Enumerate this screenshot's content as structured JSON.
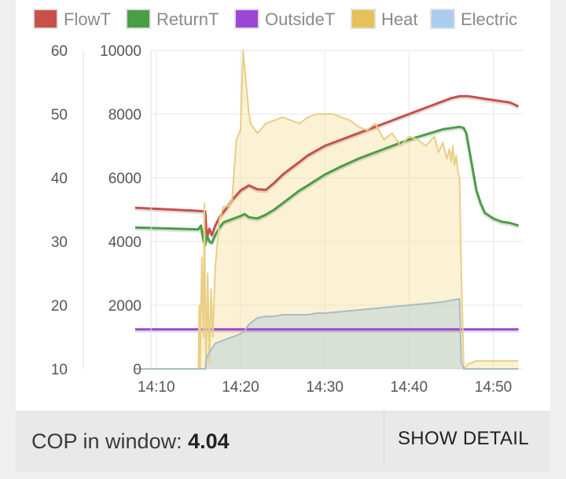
{
  "chart_data": {
    "type": "line",
    "legend_placement": "top",
    "grid": true,
    "x_ticks": [
      "14:10",
      "14:20",
      "14:30",
      "14:40",
      "14:50"
    ],
    "x_tick_minutes": [
      10,
      20,
      30,
      40,
      50
    ],
    "xlim": [
      7.5,
      53.5
    ],
    "y_left_ticks": [
      "60",
      "50",
      "40",
      "30",
      "20",
      "10"
    ],
    "y_left_lim": [
      10,
      60
    ],
    "y_right_ticks": [
      "10000",
      "8000",
      "6000",
      "4000",
      "2000",
      "0"
    ],
    "y_right_lim": [
      0,
      10000
    ],
    "series": [
      {
        "name": "FlowT",
        "axis": "left",
        "color": "#c8504a",
        "x": [
          7.5,
          15,
          15.8,
          16,
          16.3,
          16.6,
          17,
          17.6,
          18.2,
          19,
          20,
          21,
          22,
          23,
          24,
          25,
          26,
          27,
          28,
          30,
          32,
          34,
          36,
          38,
          40,
          42,
          44,
          45,
          46,
          46.5,
          47,
          48,
          49,
          50,
          51,
          52,
          53
        ],
        "y": [
          35.3,
          34.8,
          34.7,
          30.5,
          32,
          31,
          32.5,
          34,
          35,
          36.5,
          38,
          38.8,
          38.2,
          38.1,
          39.2,
          40.5,
          41.5,
          42.5,
          43.5,
          45,
          46,
          47,
          48,
          49,
          50,
          51,
          52,
          52.5,
          52.8,
          52.8,
          52.8,
          52.6,
          52.4,
          52.2,
          52,
          51.8,
          51.2
        ]
      },
      {
        "name": "ReturnT",
        "axis": "left",
        "color": "#4a9e45",
        "x": [
          7.5,
          10,
          15,
          15.3,
          15.6,
          15.8,
          16,
          16.3,
          16.6,
          17,
          17.5,
          18,
          19,
          20,
          20.5,
          21,
          22,
          23,
          24,
          25,
          26,
          27,
          28,
          30,
          32,
          34,
          36,
          38,
          40,
          42,
          44,
          45,
          46,
          46.5,
          46.8,
          47.2,
          47.6,
          48,
          48.5,
          49,
          50,
          51,
          52,
          53
        ],
        "y": [
          32.2,
          32.1,
          31.9,
          32.5,
          30.2,
          29.5,
          31,
          30,
          29.8,
          31,
          32.2,
          33,
          33.5,
          34,
          34.3,
          33.8,
          33.6,
          34.2,
          35,
          36,
          37,
          38,
          38.8,
          40.5,
          41.8,
          43,
          44,
          45,
          46,
          46.8,
          47.6,
          47.8,
          48,
          47.8,
          47,
          44,
          41,
          38,
          36,
          34.5,
          33.6,
          33.1,
          32.9,
          32.5
        ]
      },
      {
        "name": "OutsideT",
        "axis": "left",
        "color": "#9b47d6",
        "x": [
          7.5,
          53
        ],
        "y": [
          16.2,
          16.2
        ]
      },
      {
        "name": "Heat",
        "axis": "right",
        "color": "#e6c15a",
        "area": true,
        "x": [
          7.5,
          15,
          15.1,
          15.2,
          15.4,
          15.6,
          15.7,
          15.9,
          16.1,
          16.3,
          16.5,
          16.7,
          17,
          17.5,
          18,
          18.5,
          19,
          19.5,
          20,
          20.3,
          21,
          21.2,
          22,
          23,
          24,
          25,
          26,
          27,
          28,
          29,
          30,
          31,
          32,
          33,
          34,
          35,
          36,
          37,
          38,
          39,
          40,
          41,
          42,
          43,
          43.5,
          44,
          44.5,
          44.8,
          45,
          45.2,
          45.4,
          45.6,
          45.8,
          46,
          46.2,
          46.5,
          47,
          47.5,
          48,
          49,
          50,
          51,
          52,
          53
        ],
        "y": [
          0,
          0,
          2000,
          0,
          3500,
          1000,
          5200,
          0,
          3000,
          200,
          2500,
          1000,
          3200,
          4700,
          5100,
          5100,
          5300,
          7200,
          7500,
          10000,
          8000,
          7700,
          7400,
          7700,
          7800,
          7900,
          7800,
          7700,
          7900,
          8000,
          8000,
          8000,
          7900,
          7800,
          7600,
          7500,
          7700,
          7200,
          7400,
          7000,
          7300,
          7200,
          7000,
          7300,
          6800,
          7100,
          6600,
          6900,
          6500,
          7000,
          6400,
          6700,
          6200,
          6000,
          3000,
          0,
          150,
          200,
          250,
          250,
          250,
          250,
          250,
          250
        ]
      },
      {
        "name": "Electric",
        "axis": "right",
        "color": "#aacdee",
        "area": true,
        "x": [
          7.5,
          15,
          15.5,
          15.8,
          16,
          16.5,
          17,
          18,
          19,
          19.5,
          20,
          20.5,
          21,
          21.5,
          22,
          23,
          24,
          25,
          26,
          27,
          28,
          29,
          30,
          32,
          34,
          36,
          38,
          40,
          42,
          44,
          45,
          46,
          46.2,
          46.5,
          47,
          48,
          49,
          50,
          51,
          52,
          53
        ],
        "y": [
          0,
          0,
          0,
          0,
          400,
          600,
          800,
          900,
          1000,
          1050,
          1100,
          1200,
          1400,
          1500,
          1600,
          1650,
          1650,
          1700,
          1700,
          1700,
          1700,
          1750,
          1750,
          1800,
          1850,
          1900,
          1950,
          2000,
          2050,
          2100,
          2150,
          2200,
          200,
          0,
          0,
          0,
          0,
          0,
          0,
          0,
          0
        ]
      }
    ]
  },
  "footer": {
    "cop_label": "COP in window:",
    "cop_value": "4.04",
    "show_detail_label": "SHOW DETAIL"
  }
}
